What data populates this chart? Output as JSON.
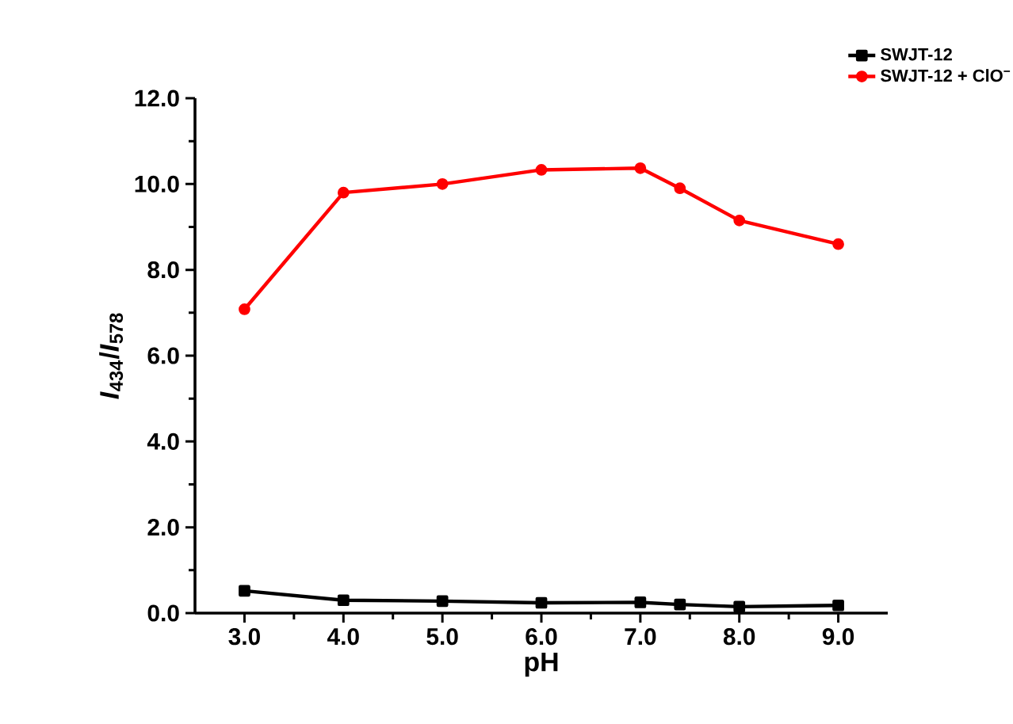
{
  "chart_data": {
    "type": "line",
    "xlabel": "pH",
    "ylabel": "*I*$_{434}$/*I*$_{578}$",
    "x": [
      3.0,
      4.0,
      5.0,
      6.0,
      7.0,
      7.4,
      8.0,
      9.0
    ],
    "series": [
      {
        "name": "SWJT-12",
        "color": "#000000",
        "marker": "square",
        "values": [
          0.52,
          0.3,
          0.28,
          0.24,
          0.25,
          0.2,
          0.15,
          0.18
        ]
      },
      {
        "name": "SWJT-12 + ClO$^{−}$",
        "color": "#ff0000",
        "marker": "circle",
        "values": [
          7.08,
          9.8,
          10.0,
          10.33,
          10.37,
          9.9,
          9.15,
          8.6
        ]
      }
    ],
    "xlim": [
      2.5,
      9.5
    ],
    "ylim": [
      0,
      12
    ],
    "xticks": [
      {
        "value": 3,
        "label": "3.0"
      },
      {
        "value": 4,
        "label": "4.0"
      },
      {
        "value": 5,
        "label": "5.0"
      },
      {
        "value": 6,
        "label": "6.0"
      },
      {
        "value": 7,
        "label": "7.0"
      },
      {
        "value": 8,
        "label": "8.0"
      },
      {
        "value": 9,
        "label": "9.0"
      }
    ],
    "yticks": [
      {
        "value": 0,
        "label": "0.0"
      },
      {
        "value": 2,
        "label": "2.0"
      },
      {
        "value": 4,
        "label": "4.0"
      },
      {
        "value": 6,
        "label": "6.0"
      },
      {
        "value": 8,
        "label": "8.0"
      },
      {
        "value": 10,
        "label": "10.0"
      },
      {
        "value": 12,
        "label": "12.0"
      }
    ],
    "legend": "top right",
    "line_style": "solid"
  }
}
